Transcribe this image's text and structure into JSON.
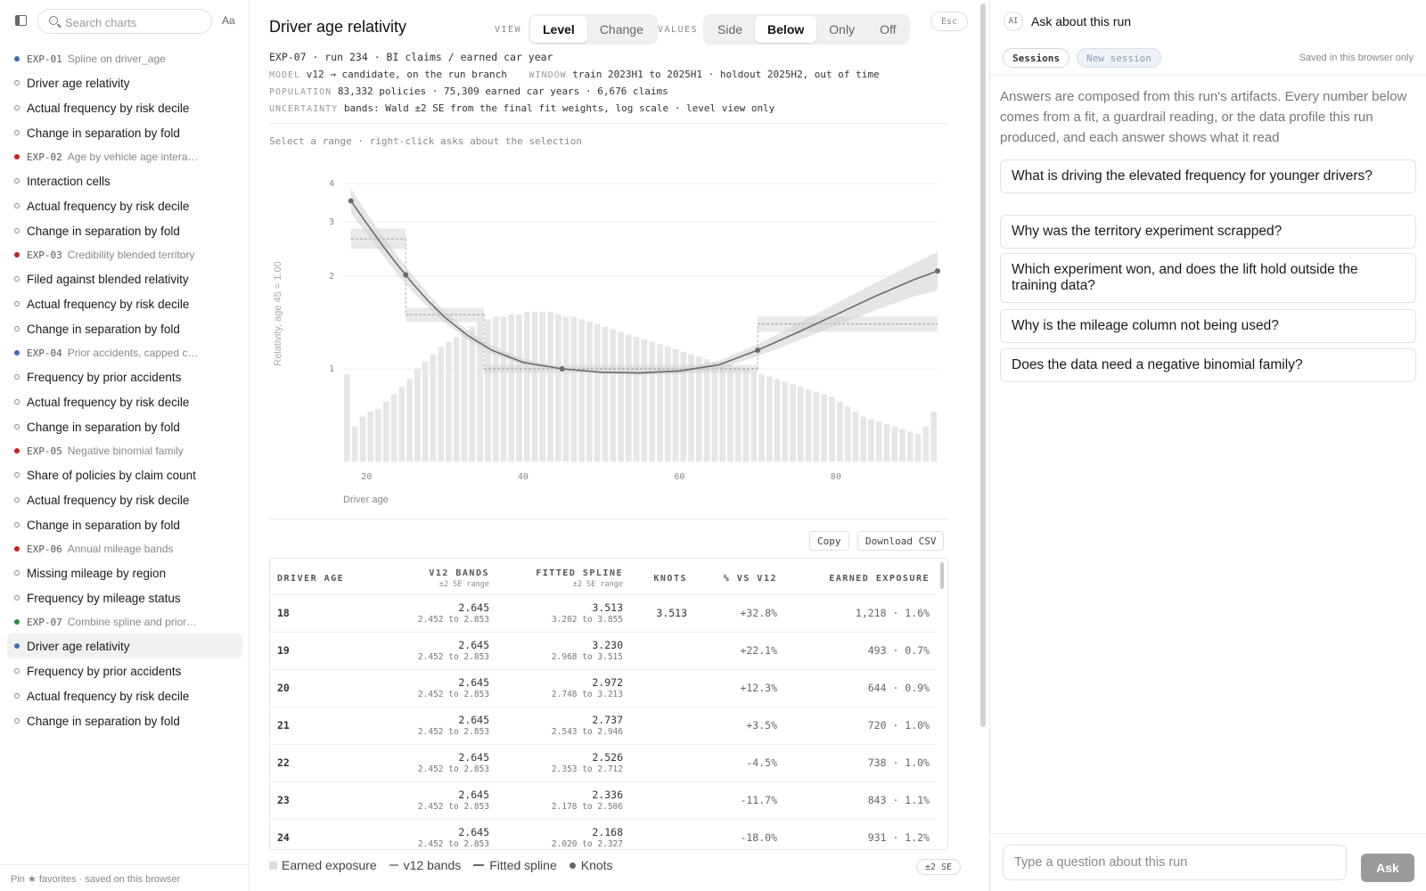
{
  "sidebar": {
    "search_placeholder": "Search charts",
    "font_toggle": "Aa",
    "footer": "Pin ★ favorites · saved on this browser",
    "groups": [
      {
        "code": "EXP-01",
        "title": "Spline on driver_age",
        "status_color": "#3b6fb5",
        "items": [
          "Driver age relativity",
          "Actual frequency by risk decile",
          "Change in separation by fold"
        ]
      },
      {
        "code": "EXP-02",
        "title": "Age by vehicle age interaction",
        "status_color": "#c81e1e",
        "items": [
          "Interaction cells",
          "Actual frequency by risk decile",
          "Change in separation by fold"
        ]
      },
      {
        "code": "EXP-03",
        "title": "Credibility blended territory",
        "status_color": "#c81e1e",
        "items": [
          "Filed against blended relativity",
          "Actual frequency by risk decile",
          "Change in separation by fold"
        ]
      },
      {
        "code": "EXP-04",
        "title": "Prior accidents, capped count",
        "status_color": "#3b6fb5",
        "items": [
          "Frequency by prior accidents",
          "Actual frequency by risk decile",
          "Change in separation by fold"
        ]
      },
      {
        "code": "EXP-05",
        "title": "Negative binomial family",
        "status_color": "#c81e1e",
        "items": [
          "Share of policies by claim count",
          "Actual frequency by risk decile",
          "Change in separation by fold"
        ]
      },
      {
        "code": "EXP-06",
        "title": "Annual mileage bands",
        "status_color": "#c81e1e",
        "items": [
          "Missing mileage by region",
          "Frequency by mileage status"
        ]
      },
      {
        "code": "EXP-07",
        "title": "Combine spline and prior ac...",
        "status_color": "#2e8b3e",
        "items": [
          "Driver age relativity",
          "Frequency by prior accidents",
          "Actual frequency by risk decile",
          "Change in separation by fold"
        ],
        "active_index": 0
      }
    ]
  },
  "main": {
    "title": "Driver age relativity",
    "view_label": "VIEW",
    "view_options": [
      "Level",
      "Change"
    ],
    "view_selected": "Level",
    "values_label": "VALUES",
    "values_options": [
      "Side",
      "Below",
      "Only",
      "Off"
    ],
    "values_selected": "Below",
    "esc_label": "Esc",
    "run_line": "EXP-07 · run 234 · BI claims / earned car year",
    "model_key": "MODEL",
    "model_val": "v12 → candidate, on the run branch",
    "window_key": "WINDOW",
    "window_val": "train 2023H1 to 2025H1 · holdout 2025H2, out of time",
    "population_key": "POPULATION",
    "population_val": "83,332 policies · 75,309 earned car years · 6,676 claims",
    "uncertainty_key": "UNCERTAINTY",
    "uncertainty_val": "bands: Wald ±2 SE from the final fit weights, log scale · level view only",
    "hint": "Select a range · right-click asks about the selection",
    "copy_label": "Copy",
    "download_label": "Download CSV",
    "se_badge": "±2 SE",
    "legend": {
      "exposure": "Earned exposure",
      "bands": "v12 bands",
      "spline": "Fitted spline",
      "knots": "Knots"
    },
    "table": {
      "headers": {
        "age": "DRIVER AGE",
        "bands": "V12 BANDS",
        "bands_sub": "±2 SE range",
        "spline": "FITTED SPLINE",
        "spline_sub": "±2 SE range",
        "knots": "KNOTS",
        "pct": "% VS V12",
        "exposure": "EARNED EXPOSURE"
      },
      "rows": [
        {
          "age": "18",
          "band": "2.645",
          "band_range": "2.452 to 2.853",
          "spline": "3.513",
          "spline_range": "3.202 to 3.855",
          "knot": "3.513",
          "pct": "+32.8%",
          "exposure": "1,218 · 1.6%"
        },
        {
          "age": "19",
          "band": "2.645",
          "band_range": "2.452 to 2.853",
          "spline": "3.230",
          "spline_range": "2.968 to 3.515",
          "knot": "",
          "pct": "+22.1%",
          "exposure": "493 · 0.7%"
        },
        {
          "age": "20",
          "band": "2.645",
          "band_range": "2.452 to 2.853",
          "spline": "2.972",
          "spline_range": "2.748 to 3.213",
          "knot": "",
          "pct": "+12.3%",
          "exposure": "644 · 0.9%"
        },
        {
          "age": "21",
          "band": "2.645",
          "band_range": "2.452 to 2.853",
          "spline": "2.737",
          "spline_range": "2.543 to 2.946",
          "knot": "",
          "pct": "+3.5%",
          "exposure": "720 · 1.0%"
        },
        {
          "age": "22",
          "band": "2.645",
          "band_range": "2.452 to 2.853",
          "spline": "2.526",
          "spline_range": "2.353 to 2.712",
          "knot": "",
          "pct": "-4.5%",
          "exposure": "738 · 1.0%"
        },
        {
          "age": "23",
          "band": "2.645",
          "band_range": "2.452 to 2.853",
          "spline": "2.336",
          "spline_range": "2.178 to 2.506",
          "knot": "",
          "pct": "-11.7%",
          "exposure": "843 · 1.1%"
        },
        {
          "age": "24",
          "band": "2.645",
          "band_range": "2.452 to 2.853",
          "spline": "2.168",
          "spline_range": "2.020 to 2.327",
          "knot": "",
          "pct": "-18.0%",
          "exposure": "931 · 1.2%"
        }
      ]
    }
  },
  "chart_data": {
    "type": "line",
    "title": "",
    "xlabel": "Driver age",
    "ylabel": "Relativity, age 45 = 1.00",
    "x_ticks": [
      20,
      40,
      60,
      80
    ],
    "y_ticks": [
      1,
      2,
      3,
      4
    ],
    "xlim": [
      17,
      93
    ],
    "ylim": [
      0.5,
      4
    ],
    "y_scale": "log",
    "grid": true,
    "series": [
      {
        "name": "Fitted spline",
        "x": [
          18,
          20,
          22,
          24,
          26,
          28,
          30,
          33,
          36,
          40,
          45,
          50,
          55,
          60,
          65,
          70,
          75,
          80,
          85,
          90,
          93
        ],
        "values": [
          3.513,
          2.972,
          2.526,
          2.168,
          1.88,
          1.65,
          1.47,
          1.28,
          1.15,
          1.05,
          1.0,
          0.975,
          0.97,
          0.985,
          1.03,
          1.15,
          1.31,
          1.5,
          1.72,
          1.95,
          2.08
        ]
      },
      {
        "name": "Fitted spline ±2 SE lower",
        "x": [
          18,
          20,
          22,
          24,
          26,
          28,
          30,
          33,
          36,
          40,
          45,
          50,
          55,
          60,
          65,
          70,
          75,
          80,
          85,
          90,
          93
        ],
        "values": [
          3.202,
          2.748,
          2.353,
          2.02,
          1.77,
          1.57,
          1.41,
          1.24,
          1.12,
          1.03,
          0.99,
          0.965,
          0.955,
          0.965,
          1.0,
          1.1,
          1.23,
          1.38,
          1.55,
          1.72,
          1.8
        ]
      },
      {
        "name": "Fitted spline ±2 SE upper",
        "x": [
          18,
          20,
          22,
          24,
          26,
          28,
          30,
          33,
          36,
          40,
          45,
          50,
          55,
          60,
          65,
          70,
          75,
          80,
          85,
          90,
          93
        ],
        "values": [
          3.855,
          3.213,
          2.712,
          2.327,
          2.0,
          1.74,
          1.54,
          1.33,
          1.19,
          1.08,
          1.01,
          0.985,
          0.985,
          1.005,
          1.06,
          1.2,
          1.4,
          1.63,
          1.9,
          2.2,
          2.4
        ]
      }
    ],
    "knots": [
      {
        "x": 18,
        "y": 3.513
      },
      {
        "x": 25,
        "y": 2.02
      },
      {
        "x": 45,
        "y": 1.0
      },
      {
        "x": 70,
        "y": 1.15
      },
      {
        "x": 93,
        "y": 2.08
      }
    ],
    "bands": [
      {
        "from": 18,
        "to": 25,
        "value": 2.645,
        "lo": 2.452,
        "hi": 2.853
      },
      {
        "from": 25,
        "to": 35,
        "value": 1.5,
        "lo": 1.42,
        "hi": 1.58
      },
      {
        "from": 35,
        "to": 70,
        "value": 1.0,
        "lo": 0.97,
        "hi": 1.03
      },
      {
        "from": 70,
        "to": 93,
        "value": 1.4,
        "lo": 1.32,
        "hi": 1.48
      }
    ],
    "exposure_profile": [
      0.35,
      0.14,
      0.18,
      0.2,
      0.21,
      0.24,
      0.27,
      0.3,
      0.33,
      0.37,
      0.4,
      0.43,
      0.46,
      0.48,
      0.5,
      0.52,
      0.54,
      0.56,
      0.57,
      0.58,
      0.58,
      0.59,
      0.59,
      0.6,
      0.6,
      0.6,
      0.6,
      0.59,
      0.58,
      0.58,
      0.57,
      0.56,
      0.55,
      0.54,
      0.53,
      0.52,
      0.51,
      0.5,
      0.49,
      0.48,
      0.47,
      0.46,
      0.45,
      0.44,
      0.43,
      0.42,
      0.41,
      0.4,
      0.4,
      0.39,
      0.38,
      0.37,
      0.36,
      0.35,
      0.34,
      0.33,
      0.32,
      0.31,
      0.3,
      0.29,
      0.28,
      0.27,
      0.26,
      0.24,
      0.22,
      0.2,
      0.18,
      0.17,
      0.16,
      0.15,
      0.14,
      0.13,
      0.12,
      0.11,
      0.14,
      0.2
    ]
  },
  "panel": {
    "ai_badge": "AI",
    "title": "Ask about this run",
    "sessions_label": "Sessions",
    "new_session_label": "New session",
    "saved_note": "Saved in this browser only",
    "intro": "Answers are composed from this run's artifacts. Every number below comes from a fit, a guardrail reading, or the data profile this run produced, and each answer shows what it read",
    "suggestions": [
      "What is driving the elevated frequency for younger drivers?",
      "Why was the territory experiment scrapped?",
      "Which experiment won, and does the lift hold outside the training data?",
      "Why is the mileage column not being used?",
      "Does the data need a negative binomial family?"
    ],
    "ask_placeholder": "Type a question about this run",
    "ask_button": "Ask"
  },
  "colors": {
    "accent_blue": "#3b6fb5",
    "status_red": "#c81e1e",
    "status_green": "#2e8b3e",
    "spline": "#6b6b6b",
    "band_fill": "#e4e4e4"
  }
}
